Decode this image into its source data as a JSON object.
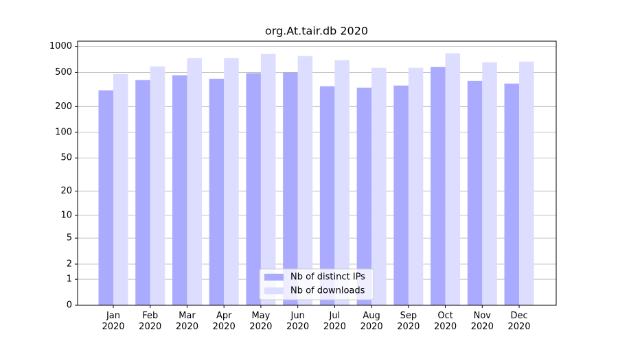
{
  "chart_data": {
    "type": "bar",
    "title": "org.At.tair.db 2020",
    "categories": [
      "Jan\n2020",
      "Feb\n2020",
      "Mar\n2020",
      "Apr\n2020",
      "May\n2020",
      "Jun\n2020",
      "Jul\n2020",
      "Aug\n2020",
      "Sep\n2020",
      "Oct\n2020",
      "Nov\n2020",
      "Dec\n2020"
    ],
    "series": [
      {
        "name": "Nb of distinct IPs",
        "color": "#aaaaff",
        "values": [
          309,
          406,
          462,
          421,
          488,
          497,
          344,
          332,
          351,
          576,
          398,
          370
        ]
      },
      {
        "name": "Nb of downloads",
        "color": "#ddddff",
        "values": [
          479,
          586,
          730,
          730,
          816,
          772,
          691,
          565,
          565,
          831,
          654,
          666
        ]
      }
    ],
    "yscale": "log1p",
    "ylim": [
      0,
      1150
    ],
    "yticks": [
      0,
      1,
      2,
      5,
      10,
      20,
      50,
      100,
      200,
      500,
      1000
    ],
    "grid": true,
    "legend": "lower center"
  }
}
